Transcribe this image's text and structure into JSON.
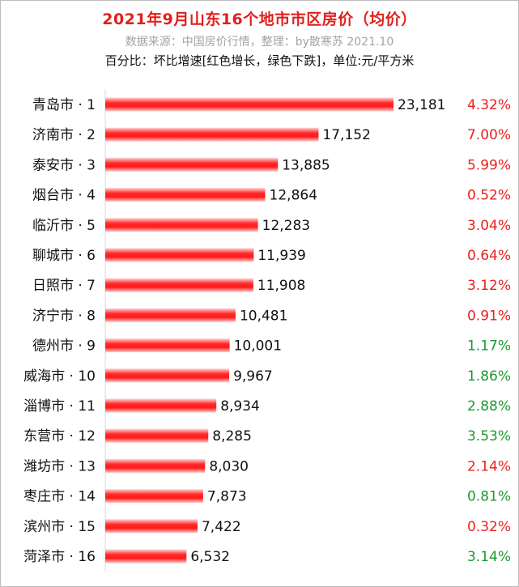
{
  "chart_data": {
    "type": "bar",
    "orientation": "horizontal",
    "title": "2021年9月山东16个地市市区房价（均价）",
    "subtitle": "数据来源：中国房价行情，整理：by散寒苏 2021.10",
    "note": "百分比：坏比增速[红色增长，绿色下跌]，单位:元/平方米",
    "bar_color": "#ff1a1a",
    "increase_color": "#e8211d",
    "decrease_color": "#1a9a2e",
    "categories": [
      "青岛市 · 1",
      "济南市 · 2",
      "泰安市 · 3",
      "烟台市 · 4",
      "临沂市 · 5",
      "聊城市 · 6",
      "日照市 · 7",
      "济宁市 · 8",
      "德州市 · 9",
      "威海市 · 10",
      "淄博市 · 11",
      "东营市 · 12",
      "潍坊市 · 13",
      "枣庄市 · 14",
      "滨州市 · 15",
      "菏泽市 · 16"
    ],
    "values": [
      23181,
      17152,
      13885,
      12864,
      12283,
      11939,
      11908,
      10481,
      10001,
      9967,
      8934,
      8285,
      8030,
      7873,
      7422,
      6532
    ],
    "value_labels": [
      "23,181",
      "17,152",
      "13,885",
      "12,864",
      "12,283",
      "11,939",
      "11,908",
      "10,481",
      "10,001",
      "9,967",
      "8,934",
      "8,285",
      "8,030",
      "7,873",
      "7,422",
      "6,532"
    ],
    "percent_labels": [
      "4.32%",
      "7.00%",
      "5.99%",
      "0.52%",
      "3.04%",
      "0.64%",
      "3.12%",
      "0.91%",
      "1.17%",
      "1.86%",
      "2.88%",
      "3.53%",
      "2.14%",
      "0.81%",
      "0.32%",
      "3.14%"
    ],
    "percent_direction": [
      "up",
      "up",
      "up",
      "up",
      "up",
      "up",
      "up",
      "up",
      "down",
      "down",
      "down",
      "down",
      "up",
      "down",
      "up",
      "down"
    ],
    "xlim": [
      0,
      23181
    ],
    "grid": false
  }
}
